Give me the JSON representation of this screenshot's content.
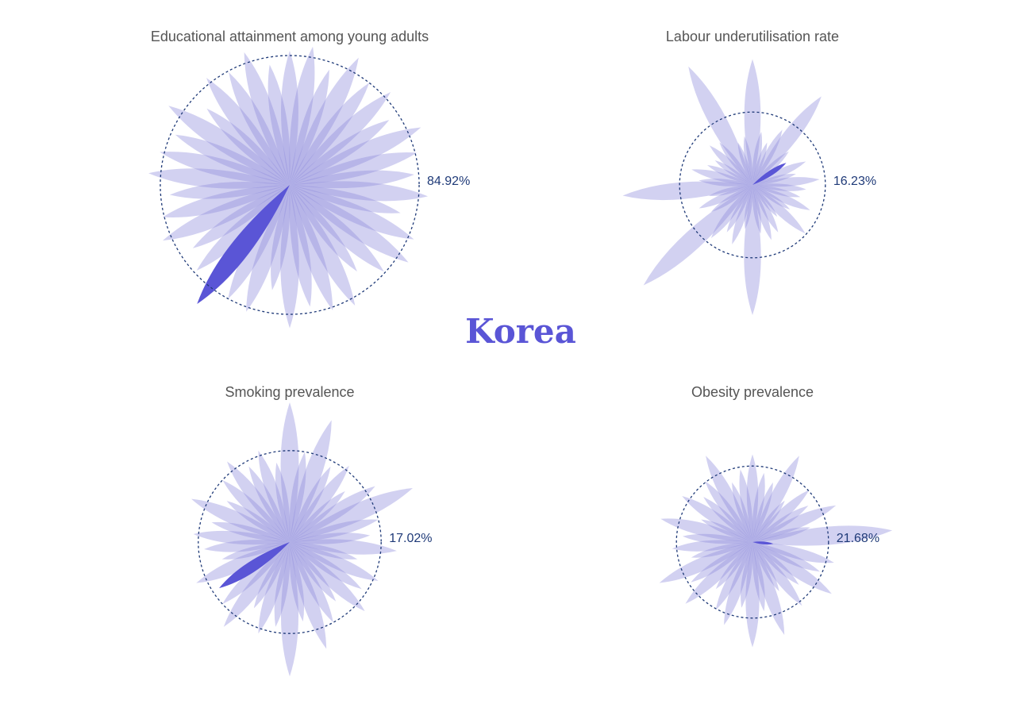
{
  "title": "Korea",
  "chart_data": [
    {
      "type": "petal",
      "title": "Educational attainment among young adults",
      "values": [
        88,
        92,
        80,
        95,
        85,
        90,
        78,
        94,
        86,
        82,
        91,
        75,
        89,
        93,
        84,
        72,
        90,
        87,
        81,
        94,
        70,
        88,
        85,
        99,
        83,
        76,
        91,
        86,
        79,
        93,
        88,
        82,
        95,
        74,
        89,
        84,
        92,
        80
      ],
      "highlight": 23,
      "reference": {
        "value": 84.92,
        "label": "84.92%"
      },
      "rlim": [
        0,
        100
      ],
      "color": "#8e8bdc",
      "highlight_color": "#5a55d6",
      "reference_color": "#1f3a78"
    },
    {
      "type": "petal",
      "title": "Labour underutilisation rate",
      "values": [
        28,
        12,
        10,
        14,
        25,
        11,
        9,
        13,
        10,
        15,
        12,
        11,
        14,
        10,
        16,
        9,
        12,
        13,
        11,
        29,
        10,
        14,
        12,
        15,
        33,
        11,
        13,
        10,
        29,
        12,
        14,
        11,
        10,
        13,
        12,
        30,
        10,
        11
      ],
      "highlight": 6,
      "reference": {
        "value": 16.23,
        "label": "16.23%"
      },
      "rlim": [
        0,
        35
      ],
      "color": "#8e8bdc",
      "highlight_color": "#5a55d6",
      "reference_color": "#1f3a78"
    },
    {
      "type": "petal",
      "title": "Smoking prevalence",
      "values": [
        26,
        17,
        24,
        16,
        18,
        14,
        19,
        25,
        17,
        15,
        20,
        13,
        18,
        16,
        19,
        14,
        17,
        21,
        15,
        25,
        16,
        18,
        14,
        20,
        17,
        15.7,
        19,
        13,
        16,
        18,
        15,
        20,
        14,
        17,
        19,
        16,
        18,
        15
      ],
      "highlight": 25,
      "reference": {
        "value": 17.02,
        "label": "17.02%"
      },
      "rlim": [
        0,
        26
      ],
      "color": "#8e8bdc",
      "highlight_color": "#5a55d6",
      "reference_color": "#1f3a78"
    },
    {
      "type": "petal",
      "title": "Obesity prevalence",
      "values": [
        25,
        20,
        18,
        28,
        15,
        22,
        19,
        26,
        17,
        40,
        6,
        24,
        21,
        27,
        18,
        23,
        16,
        28,
        20,
        30,
        19,
        25,
        22,
        17,
        26,
        21,
        29,
        18,
        23,
        20,
        27,
        16,
        24,
        19,
        22,
        28,
        18,
        21
      ],
      "highlight": 10,
      "reference": {
        "value": 21.68,
        "label": "21.68%"
      },
      "rlim": [
        0,
        43
      ],
      "color": "#8e8bdc",
      "highlight_color": "#5a55d6",
      "reference_color": "#1f3a78"
    }
  ]
}
